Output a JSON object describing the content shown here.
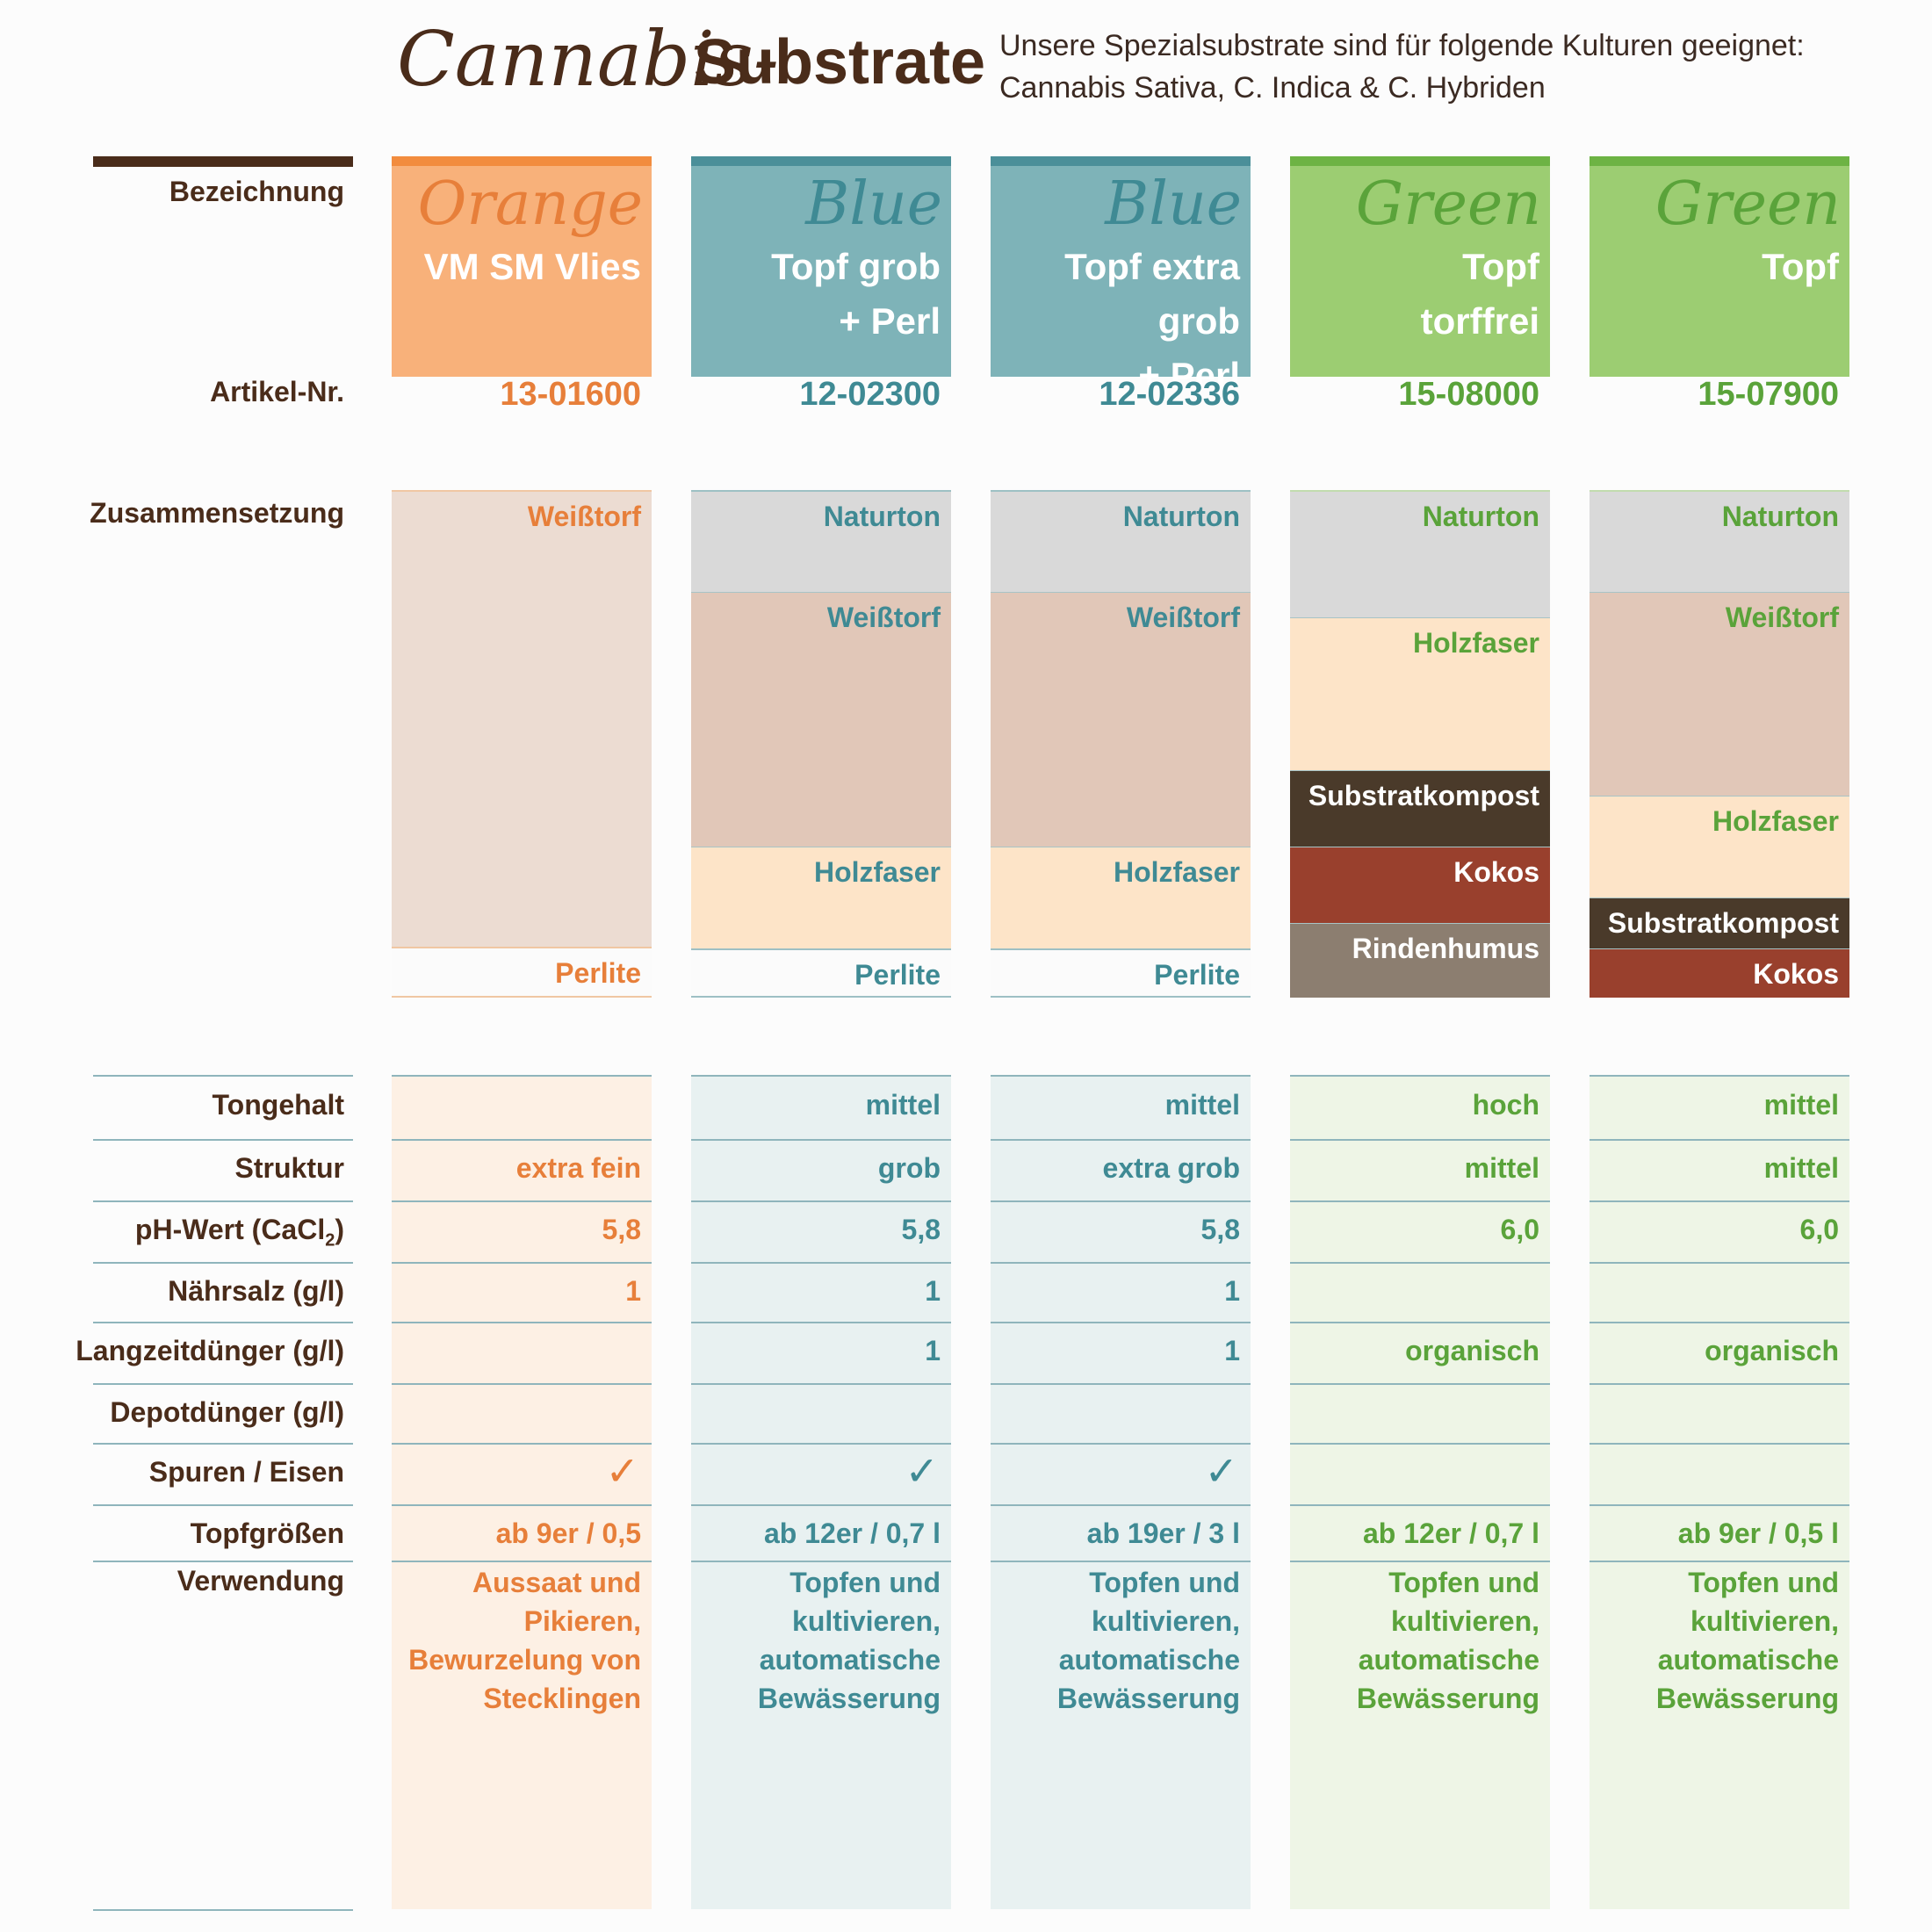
{
  "header": {
    "title_script": "Cannabis-",
    "title_main": "Substrate",
    "intro_line1": "Unsere Spezialsubstrate sind für folgende Kulturen geeignet:",
    "intro_line2": "Cannabis Sativa, C. Indica & C. Hybriden"
  },
  "labels": {
    "bezeichnung": "Bezeichnung",
    "artikel": "Artikel-Nr.",
    "zusammensetzung": "Zusammensetzung",
    "tongehalt": "Tongehalt",
    "struktur": "Struktur",
    "ph_prefix": "pH-Wert  (CaCl",
    "ph_sub": "2",
    "ph_suffix": ")",
    "naehrsalz": "Nährsalz (g/l)",
    "langzeit": "Langzeitdünger (g/l)",
    "depot": "Depotdünger (g/l)",
    "spuren": "Spuren / Eisen",
    "topf": "Topfgrößen",
    "verwendung": "Verwendung"
  },
  "colors": {
    "orange": "#e77f3a",
    "orange_head": "#f8b17a",
    "orange_bg": "#fdf0e4",
    "blue": "#3f8a94",
    "blue_head": "#7eb3b8",
    "blue_bg": "#e8f1f1",
    "green": "#5aa33a",
    "green_head": "#9ccd72",
    "green_bg": "#eef5e6",
    "brown": "#4a2c1a",
    "naturton": "#d9d9d9",
    "weisstorf": "#e1c7b8",
    "holzfaser": "#fde4c8",
    "substratkompost": "#4a3a2a",
    "kokos": "#99402d",
    "rindenhumus": "#8c7e70"
  },
  "products": [
    {
      "script": "Orange",
      "name_lines": [
        "VM SM Vlies"
      ],
      "artnr": "13-01600",
      "composition": [
        {
          "label": "Weißtorf"
        },
        {
          "label": "Perlite"
        }
      ],
      "tongehalt": "",
      "struktur": "extra fein",
      "ph": "5,8",
      "naehrsalz": "1",
      "langzeit": "",
      "depot": "",
      "spuren": "✓",
      "topf": "ab 9er / 0,5",
      "verwendung": [
        "Aussaat und",
        "Pikieren,",
        "Bewurzelung von",
        "Stecklingen"
      ]
    },
    {
      "script": "Blue",
      "name_lines": [
        "Topf grob",
        "+ Perl"
      ],
      "artnr": "12-02300",
      "composition": [
        {
          "label": "Naturton"
        },
        {
          "label": "Weißtorf"
        },
        {
          "label": "Holzfaser"
        },
        {
          "label": "Perlite"
        }
      ],
      "tongehalt": "mittel",
      "struktur": "grob",
      "ph": "5,8",
      "naehrsalz": "1",
      "langzeit": "1",
      "depot": "",
      "spuren": "✓",
      "topf": "ab 12er / 0,7 l",
      "verwendung": [
        "Topfen und",
        "kultivieren,",
        "automatische",
        "Bewässerung"
      ]
    },
    {
      "script": "Blue",
      "name_lines": [
        "Topf extra grob",
        "+ Perl"
      ],
      "artnr": "12-02336",
      "composition": [
        {
          "label": "Naturton"
        },
        {
          "label": "Weißtorf"
        },
        {
          "label": "Holzfaser"
        },
        {
          "label": "Perlite"
        }
      ],
      "tongehalt": "mittel",
      "struktur": "extra grob",
      "ph": "5,8",
      "naehrsalz": "1",
      "langzeit": "1",
      "depot": "",
      "spuren": "✓",
      "topf": "ab 19er / 3 l",
      "verwendung": [
        "Topfen und",
        "kultivieren,",
        "automatische",
        "Bewässerung"
      ]
    },
    {
      "script": "Green",
      "name_lines": [
        "Topf",
        "torffrei"
      ],
      "artnr": "15-08000",
      "composition": [
        {
          "label": "Naturton"
        },
        {
          "label": "Holzfaser"
        },
        {
          "label": "Substratkompost"
        },
        {
          "label": "Kokos"
        },
        {
          "label": "Rindenhumus"
        }
      ],
      "tongehalt": "hoch",
      "struktur": "mittel",
      "ph": "6,0",
      "naehrsalz": "",
      "langzeit": "organisch",
      "depot": "",
      "spuren": "",
      "topf": "ab 12er / 0,7 l",
      "verwendung": [
        "Topfen und",
        "kultivieren,",
        "automatische",
        "Bewässerung"
      ]
    },
    {
      "script": "Green",
      "name_lines": [
        "Topf"
      ],
      "artnr": "15-07900",
      "composition": [
        {
          "label": "Naturton"
        },
        {
          "label": "Weißtorf"
        },
        {
          "label": "Holzfaser"
        },
        {
          "label": "Substratkompost"
        },
        {
          "label": "Kokos"
        }
      ],
      "tongehalt": "mittel",
      "struktur": "mittel",
      "ph": "6,0",
      "naehrsalz": "",
      "langzeit": "organisch",
      "depot": "",
      "spuren": "",
      "topf": "ab 9er / 0,5 l",
      "verwendung": [
        "Topfen und",
        "kultivieren,",
        "automatische",
        "Bewässerung"
      ]
    }
  ]
}
